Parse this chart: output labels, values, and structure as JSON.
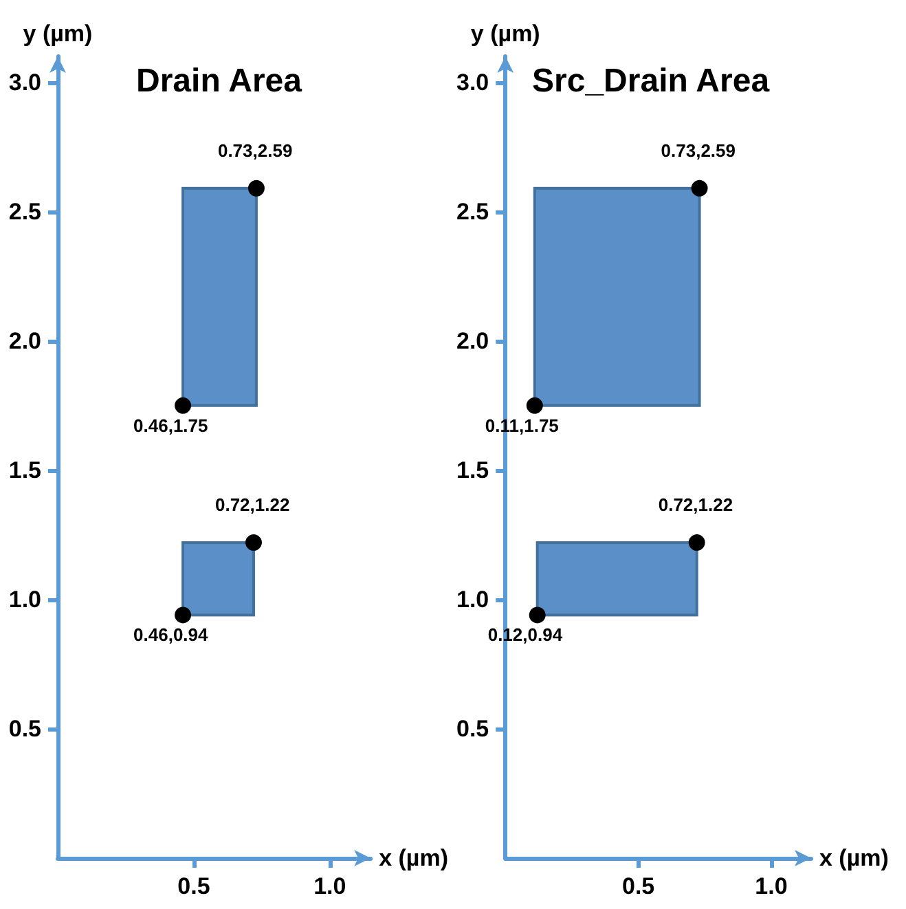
{
  "chart_data": [
    {
      "type": "scatter",
      "title": "Drain Area",
      "xlabel": "x (µm)",
      "ylabel": "y (µm)",
      "xlim": [
        0,
        1.15
      ],
      "xticks": [
        0.5,
        {
          "value": 1,
          "label": "1.0"
        }
      ],
      "ylim": [
        0,
        3.1
      ],
      "yticks": [
        0.5,
        {
          "value": 1,
          "label": "1.0"
        },
        1.5,
        {
          "value": 2,
          "label": "2.0"
        },
        2.5,
        {
          "value": 3,
          "label": "3.0"
        }
      ],
      "grid": false,
      "marker": "circle",
      "series": [
        {
          "color": "#000000",
          "x": [
            0.46,
            0.73,
            0.46,
            0.72
          ],
          "values": [
            1.75,
            2.59,
            0.94,
            1.22
          ],
          "value_labels": [
            "0.46,1.75",
            "0.73,2.59",
            "0.46,0.94",
            "0.72,1.22"
          ]
        }
      ]
    },
    {
      "type": "scatter",
      "title": "Src_Drain Area",
      "xlabel": "x (µm)",
      "ylabel": "y (µm)",
      "xlim": [
        0,
        1.15
      ],
      "xticks": [
        0.5,
        {
          "value": 1,
          "label": "1.0"
        }
      ],
      "ylim": [
        0,
        3.1
      ],
      "yticks": [
        0.5,
        {
          "value": 1,
          "label": "1.0"
        },
        1.5,
        {
          "value": 2,
          "label": "2.0"
        },
        2.5,
        {
          "value": 3,
          "label": "3.0"
        }
      ],
      "grid": false,
      "marker": "circle",
      "series": [
        {
          "color": "#000000",
          "x": [
            0.11,
            0.73,
            0.12,
            0.72
          ],
          "values": [
            1.75,
            2.59,
            0.94,
            1.22
          ],
          "value_labels": [
            "0.11,1.75",
            "0.73,2.59",
            "0.12,0.94",
            "0.72,1.22"
          ]
        }
      ]
    }
  ]
}
